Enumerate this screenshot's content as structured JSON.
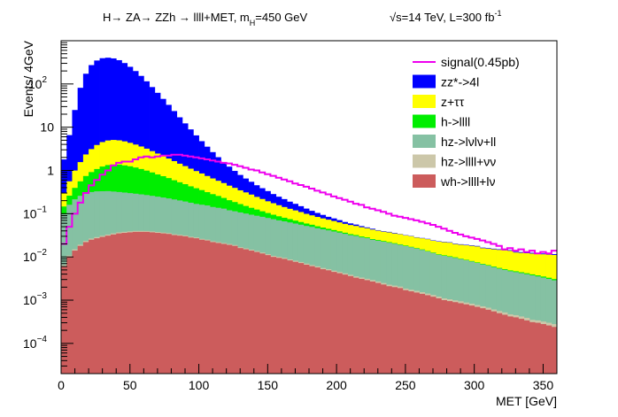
{
  "chart_data": {
    "type": "bar",
    "subtype": "stacked-histogram-log",
    "title_left": "H→ ZA→ ZZh → llll+MET, m",
    "title_left_sub": "H",
    "title_left_tail": "=450 GeV",
    "title_right": "√s=14 TeV, L=300 fb",
    "title_right_sup": "-1",
    "xlabel": "MET [GeV]",
    "ylabel": "Events/ 4GeV",
    "xlim": [
      0,
      360
    ],
    "ylim": [
      2e-05,
      1000
    ],
    "yscale": "log",
    "bin_width": 4,
    "x_ticks": [
      "0",
      "50",
      "100",
      "150",
      "200",
      "250",
      "300",
      "350"
    ],
    "y_tick_labels": [
      {
        "value": 100,
        "base": "10",
        "exp": "2"
      },
      {
        "value": 10,
        "base": "10",
        "exp": ""
      },
      {
        "value": 1,
        "base": "1",
        "exp": ""
      },
      {
        "value": 0.1,
        "base": "10",
        "exp": "−1"
      },
      {
        "value": 0.01,
        "base": "10",
        "exp": "−2"
      },
      {
        "value": 0.001,
        "base": "10",
        "exp": "−3"
      },
      {
        "value": 0.0001,
        "base": "10",
        "exp": "−4"
      }
    ],
    "legend_position": "top-right",
    "series": [
      {
        "name": "wh->llll+lν",
        "color": "#cc5c5c",
        "bin_width": 4,
        "values": [
          0.006,
          0.01,
          0.014,
          0.018,
          0.022,
          0.025,
          0.027,
          0.029,
          0.031,
          0.033,
          0.035,
          0.036,
          0.037,
          0.038,
          0.038,
          0.038,
          0.037,
          0.036,
          0.035,
          0.034,
          0.032,
          0.031,
          0.03,
          0.028,
          0.027,
          0.025,
          0.024,
          0.022,
          0.021,
          0.02,
          0.019,
          0.018,
          0.016,
          0.015,
          0.014,
          0.013,
          0.012,
          0.011,
          0.01,
          0.0095,
          0.009,
          0.0083,
          0.0077,
          0.0072,
          0.0066,
          0.0061,
          0.0057,
          0.0052,
          0.0049,
          0.0045,
          0.0042,
          0.0039,
          0.0036,
          0.0033,
          0.0031,
          0.0029,
          0.0027,
          0.0025,
          0.0023,
          0.0021,
          0.002,
          0.0019,
          0.0017,
          0.0016,
          0.0015,
          0.0014,
          0.0013,
          0.0012,
          0.0011,
          0.001,
          0.00095,
          0.0009,
          0.00085,
          0.0008,
          0.00075,
          0.0007,
          0.00065,
          0.0006,
          0.00055,
          0.0005,
          0.00046,
          0.00042,
          0.0004,
          0.00037,
          0.00034,
          0.00031,
          0.0003,
          0.00028,
          0.00026,
          0.00024
        ]
      },
      {
        "name": "hz->llll+νν",
        "color": "#ccc7a9",
        "bin_width": 4,
        "values": [
          0.0005,
          0.0008,
          0.001,
          0.0012,
          0.0014,
          0.0016,
          0.0017,
          0.0018,
          0.0019,
          0.002,
          0.002,
          0.002,
          0.002,
          0.0019,
          0.0019,
          0.0018,
          0.0018,
          0.0017,
          0.0016,
          0.0016,
          0.0015,
          0.0014,
          0.0014,
          0.0013,
          0.0012,
          0.0012,
          0.0011,
          0.001,
          0.001,
          0.00095,
          0.0009,
          0.00085,
          0.0008,
          0.00076,
          0.00072,
          0.00068,
          0.00064,
          0.0006,
          0.00057,
          0.00054,
          0.0005,
          0.00048,
          0.00045,
          0.00043,
          0.0004,
          0.00038,
          0.00036,
          0.00034,
          0.00032,
          0.0003,
          0.00029,
          0.00027,
          0.00026,
          0.00024,
          0.00023,
          0.00022,
          0.00021,
          0.0002,
          0.00019,
          0.00018,
          0.00017,
          0.00016,
          0.00015,
          0.00014,
          0.00014,
          0.00013,
          0.00012,
          0.00012,
          0.00011,
          0.0001,
          0.0001,
          9e-05,
          9e-05,
          8e-05,
          8e-05,
          7e-05,
          7e-05,
          7e-05,
          6e-05,
          6e-05,
          6e-05,
          5e-05,
          5e-05,
          5e-05,
          5e-05,
          4e-05,
          4e-05,
          4e-05,
          4e-05,
          4e-05
        ]
      },
      {
        "name": "hz->lνlν+ll",
        "color": "#85c1a3",
        "bin_width": 4,
        "values": [
          0.09,
          0.15,
          0.2,
          0.24,
          0.27,
          0.29,
          0.3,
          0.3,
          0.3,
          0.29,
          0.28,
          0.27,
          0.26,
          0.25,
          0.24,
          0.23,
          0.22,
          0.21,
          0.2,
          0.19,
          0.18,
          0.17,
          0.16,
          0.15,
          0.14,
          0.135,
          0.13,
          0.12,
          0.115,
          0.11,
          0.1,
          0.095,
          0.09,
          0.085,
          0.08,
          0.076,
          0.072,
          0.068,
          0.064,
          0.06,
          0.057,
          0.054,
          0.051,
          0.048,
          0.045,
          0.043,
          0.04,
          0.038,
          0.036,
          0.034,
          0.032,
          0.03,
          0.028,
          0.027,
          0.025,
          0.024,
          0.022,
          0.021,
          0.02,
          0.019,
          0.018,
          0.017,
          0.016,
          0.015,
          0.014,
          0.013,
          0.012,
          0.011,
          0.01,
          0.0095,
          0.009,
          0.0085,
          0.008,
          0.0075,
          0.007,
          0.0065,
          0.006,
          0.0056,
          0.0052,
          0.0048,
          0.0045,
          0.0042,
          0.004,
          0.0038,
          0.0036,
          0.0034,
          0.0032,
          0.003,
          0.0028,
          0.0026
        ]
      },
      {
        "name": "h->llll",
        "color": "#00ee00",
        "bin_width": 4,
        "values": [
          0.05,
          0.1,
          0.18,
          0.3,
          0.45,
          0.6,
          0.75,
          0.9,
          1.0,
          1.05,
          1.05,
          1.0,
          0.95,
          0.88,
          0.8,
          0.72,
          0.64,
          0.56,
          0.5,
          0.44,
          0.38,
          0.33,
          0.29,
          0.25,
          0.22,
          0.19,
          0.16,
          0.14,
          0.12,
          0.1,
          0.085,
          0.072,
          0.06,
          0.05,
          0.042,
          0.035,
          0.029,
          0.024,
          0.02,
          0.017,
          0.014,
          0.012,
          0.01,
          0.0085,
          0.0072,
          0.006,
          0.005,
          0.0042,
          0.0035,
          0.003,
          0.0025,
          0.0021,
          0.0018,
          0.0015,
          0.0013,
          0.0011,
          0.001,
          0.0009,
          0.0008,
          0.0007,
          0.0006,
          0.0005,
          0.0005,
          0.0004,
          0.0004,
          0.0004,
          0.0003,
          0.0003,
          0.0003,
          0.0003,
          0.0003,
          0.0003,
          0.0002,
          0.0002,
          0.0002,
          0.0002,
          0.0002,
          0.0002,
          0.0002,
          0.0002,
          0.0002,
          0.0002,
          0.0002,
          0.0002,
          0.0002,
          0.0002,
          0.0002,
          0.0002,
          0.0002,
          0.0002
        ]
      },
      {
        "name": "z+ττ",
        "color": "#ffff00",
        "bin_width": 4,
        "values": [
          0.15,
          0.3,
          0.6,
          1.0,
          1.6,
          2.2,
          2.8,
          3.3,
          3.6,
          3.7,
          3.6,
          3.4,
          3.1,
          2.8,
          2.5,
          2.2,
          1.9,
          1.65,
          1.42,
          1.22,
          1.05,
          0.9,
          0.78,
          0.67,
          0.58,
          0.5,
          0.43,
          0.37,
          0.32,
          0.28,
          0.24,
          0.21,
          0.18,
          0.16,
          0.14,
          0.12,
          0.105,
          0.09,
          0.08,
          0.07,
          0.062,
          0.055,
          0.05,
          0.045,
          0.04,
          0.036,
          0.033,
          0.03,
          0.028,
          0.026,
          0.024,
          0.022,
          0.021,
          0.02,
          0.019,
          0.018,
          0.017,
          0.016,
          0.015,
          0.015,
          0.014,
          0.014,
          0.013,
          0.013,
          0.012,
          0.012,
          0.012,
          0.011,
          0.011,
          0.011,
          0.011,
          0.01,
          0.01,
          0.01,
          0.01,
          0.01,
          0.009,
          0.009,
          0.009,
          0.009,
          0.009,
          0.009,
          0.008,
          0.008,
          0.008,
          0.008,
          0.008,
          0.008,
          0.008,
          0.008
        ]
      },
      {
        "name": "zz*->4l",
        "color": "#0000ff",
        "bin_width": 4,
        "values": [
          1.5,
          6,
          24,
          80,
          170,
          270,
          345,
          390,
          400,
          385,
          350,
          300,
          245,
          195,
          150,
          112,
          82,
          60,
          43,
          31,
          22,
          15.5,
          11,
          7.8,
          5.5,
          3.9,
          2.8,
          2.0,
          1.45,
          1.05,
          0.78,
          0.58,
          0.44,
          0.34,
          0.27,
          0.21,
          0.17,
          0.14,
          0.11,
          0.09,
          0.075,
          0.06,
          0.05,
          0.04,
          0.032,
          0.025,
          0.02,
          0.016,
          0.012,
          0.01,
          0.008,
          0.006,
          0.005,
          0.004,
          0.003,
          0.002,
          0.002,
          0.001,
          0.001,
          0.001,
          0.001,
          0.0005,
          0.0005,
          0.0005,
          0.0005,
          0.0005,
          0.0005,
          0.0005,
          0.0005,
          0.0005,
          0.0005,
          0.0005,
          0.0005,
          0.0005,
          0.0005,
          0.0005,
          0.0005,
          0.0005,
          0.0005,
          0.0005,
          0.0005,
          0.0005,
          0.0005,
          0.0005,
          0.0005,
          0.0005,
          0.0005,
          0.0005,
          0.0005,
          0.0005
        ]
      }
    ],
    "signal": {
      "name": "signal(0.45pb)",
      "color": "#ee00ee",
      "bin_width": 4,
      "values": [
        0.02,
        0.05,
        0.1,
        0.18,
        0.3,
        0.45,
        0.6,
        0.8,
        1.0,
        1.3,
        1.5,
        1.6,
        1.6,
        1.8,
        2.0,
        2.1,
        2.0,
        2.1,
        2.2,
        2.2,
        2.3,
        2.3,
        2.2,
        2.1,
        2.0,
        1.9,
        1.8,
        1.7,
        1.6,
        1.5,
        1.45,
        1.35,
        1.25,
        1.15,
        1.05,
        1.0,
        0.9,
        0.82,
        0.75,
        0.68,
        0.62,
        0.56,
        0.5,
        0.46,
        0.42,
        0.38,
        0.34,
        0.31,
        0.28,
        0.25,
        0.23,
        0.21,
        0.19,
        0.17,
        0.16,
        0.14,
        0.13,
        0.12,
        0.11,
        0.1,
        0.09,
        0.085,
        0.08,
        0.075,
        0.07,
        0.065,
        0.06,
        0.055,
        0.05,
        0.045,
        0.04,
        0.036,
        0.033,
        0.03,
        0.028,
        0.026,
        0.024,
        0.022,
        0.02,
        0.018,
        0.015,
        0.016,
        0.014,
        0.015,
        0.013,
        0.014,
        0.012,
        0.013,
        0.012,
        0.014
      ]
    }
  }
}
